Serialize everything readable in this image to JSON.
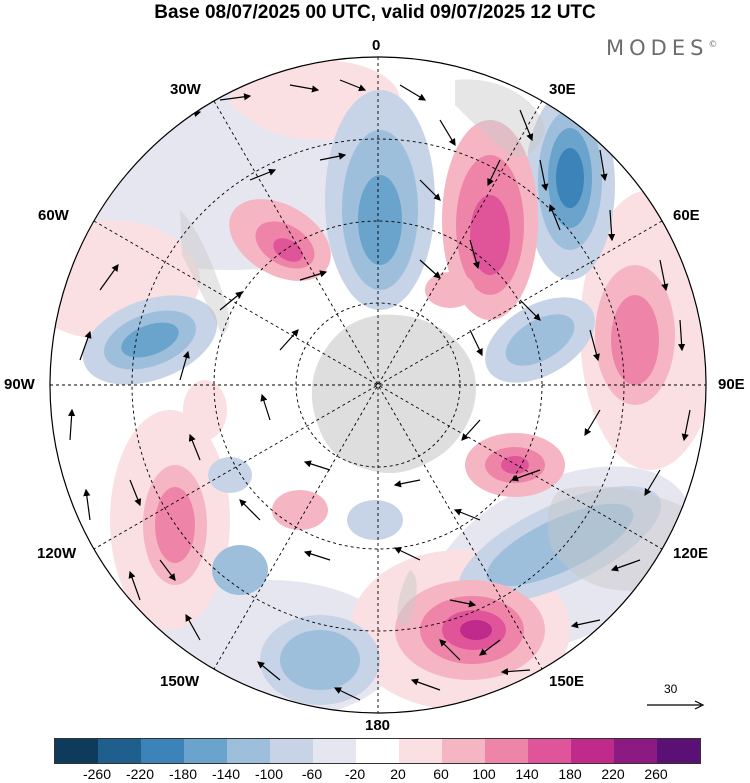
{
  "title": "Base 08/07/2025 00 UTC, valid 09/07/2025 12 UTC",
  "brand": "MODES",
  "brand_mark": "©",
  "labels": {
    "lon_0": "0",
    "lon_30e": "30E",
    "lon_60e": "60E",
    "lon_90e": "90E",
    "lon_120e": "120E",
    "lon_150e": "150E",
    "lon_180": "180",
    "lon_150w": "150W",
    "lon_120w": "120W",
    "lon_90w": "90W",
    "lon_60w": "60W",
    "lon_30w": "30W"
  },
  "reference_vector": "30",
  "colorbar": {
    "colors": [
      "#0e3b5c",
      "#1e5f8e",
      "#3b83b8",
      "#6aa3cc",
      "#9dbfdc",
      "#c7d3e6",
      "#e6e6f0",
      "#ffffff",
      "#fbe0e3",
      "#f6b5c3",
      "#ee85a8",
      "#e0559a",
      "#c02a8a",
      "#8b1a82",
      "#5a1075"
    ],
    "ticks": [
      "-260",
      "-220",
      "-180",
      "-140",
      "-100",
      "-60",
      "-20",
      "20",
      "60",
      "100",
      "140",
      "180",
      "220",
      "260"
    ]
  },
  "legend_colors": {
    "positive_anomaly": "#e0559a",
    "negative_anomaly": "#3b83b8",
    "land": "#c8c8c8"
  }
}
